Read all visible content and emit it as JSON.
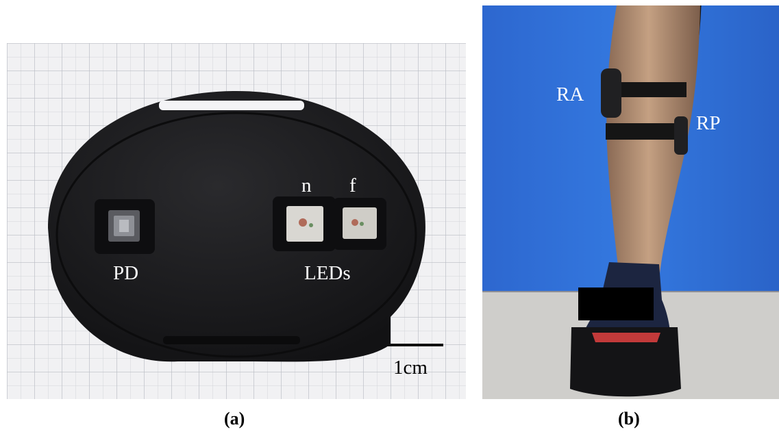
{
  "panel_a": {
    "caption": "(a)",
    "labels": {
      "pd": "PD",
      "leds": "LEDs",
      "near": "n",
      "far": "f"
    },
    "scale_bar": {
      "label": "1cm"
    }
  },
  "panel_b": {
    "caption": "(b)",
    "labels": {
      "ra": "RA",
      "rp": "RP"
    }
  },
  "colors": {
    "grid_paper": "#f1f1f3",
    "grid_line": "#c4c6cc",
    "device_body": "#1b1b1d",
    "wall_blue": "#2f6fd6",
    "floor": "#c9c8c4",
    "label_text": "#ffffff"
  }
}
